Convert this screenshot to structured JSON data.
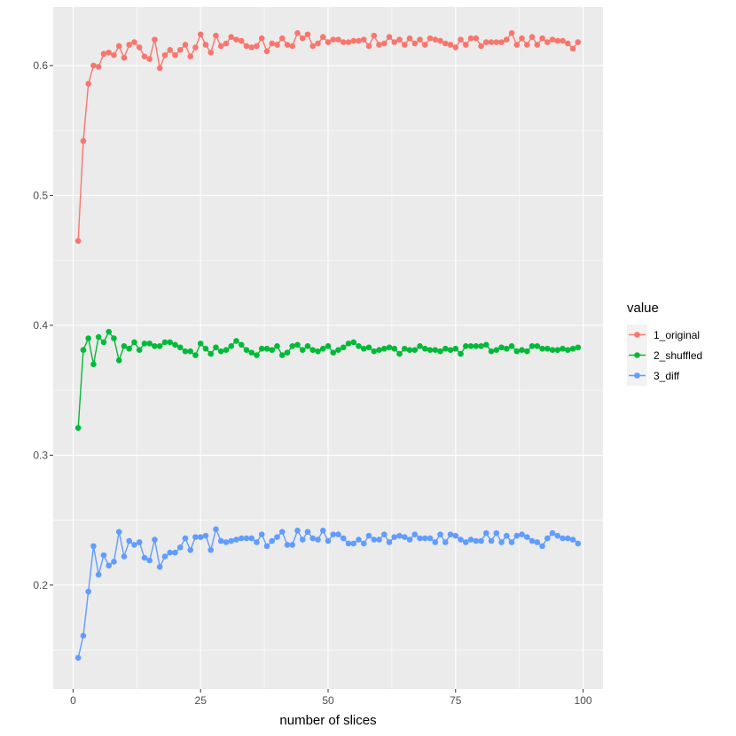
{
  "chart_data": {
    "type": "line",
    "title": "",
    "xlabel": "number of slices",
    "ylabel": "",
    "xlim": [
      -3.9,
      103.9
    ],
    "ylim": [
      0.12,
      0.645
    ],
    "x_ticks": [
      0,
      25,
      50,
      75,
      100
    ],
    "x_tick_labels": [
      "0",
      "25",
      "50",
      "75",
      "100"
    ],
    "y_ticks": [
      0.2,
      0.3,
      0.4,
      0.5,
      0.6
    ],
    "y_tick_labels": [
      "0.2",
      "0.3",
      "0.4",
      "0.5",
      "0.6"
    ],
    "grid": true,
    "panel_background": "#ebebeb",
    "grid_color": "#ffffff",
    "legend": {
      "title": "value",
      "position": "right"
    },
    "x": [
      1,
      2,
      3,
      4,
      5,
      6,
      7,
      8,
      9,
      10,
      11,
      12,
      13,
      14,
      15,
      16,
      17,
      18,
      19,
      20,
      21,
      22,
      23,
      24,
      25,
      26,
      27,
      28,
      29,
      30,
      31,
      32,
      33,
      34,
      35,
      36,
      37,
      38,
      39,
      40,
      41,
      42,
      43,
      44,
      45,
      46,
      47,
      48,
      49,
      50,
      51,
      52,
      53,
      54,
      55,
      56,
      57,
      58,
      59,
      60,
      61,
      62,
      63,
      64,
      65,
      66,
      67,
      68,
      69,
      70,
      71,
      72,
      73,
      74,
      75,
      76,
      77,
      78,
      79,
      80,
      81,
      82,
      83,
      84,
      85,
      86,
      87,
      88,
      89,
      90,
      91,
      92,
      93,
      94,
      95,
      96,
      97,
      98,
      99
    ],
    "series": [
      {
        "name": "1_original",
        "color": "#F8766D",
        "values": [
          0.465,
          0.542,
          0.586,
          0.6,
          0.599,
          0.609,
          0.61,
          0.608,
          0.615,
          0.606,
          0.616,
          0.618,
          0.614,
          0.607,
          0.605,
          0.62,
          0.598,
          0.608,
          0.612,
          0.608,
          0.612,
          0.616,
          0.607,
          0.614,
          0.624,
          0.616,
          0.61,
          0.623,
          0.615,
          0.617,
          0.622,
          0.62,
          0.619,
          0.615,
          0.614,
          0.615,
          0.621,
          0.611,
          0.617,
          0.616,
          0.621,
          0.616,
          0.615,
          0.625,
          0.621,
          0.624,
          0.615,
          0.617,
          0.622,
          0.618,
          0.62,
          0.62,
          0.618,
          0.618,
          0.619,
          0.619,
          0.62,
          0.615,
          0.623,
          0.616,
          0.617,
          0.622,
          0.618,
          0.62,
          0.616,
          0.621,
          0.617,
          0.62,
          0.616,
          0.621,
          0.62,
          0.619,
          0.617,
          0.616,
          0.614,
          0.62,
          0.616,
          0.621,
          0.621,
          0.615,
          0.618,
          0.618,
          0.618,
          0.618,
          0.62,
          0.625,
          0.616,
          0.621,
          0.616,
          0.622,
          0.616,
          0.621,
          0.618,
          0.62,
          0.619,
          0.619,
          0.617,
          0.613,
          0.618
        ],
        "_note": ""
      },
      {
        "name": "2_shuffled",
        "color": "#00BA38",
        "values": [
          0.321,
          0.381,
          0.39,
          0.37,
          0.391,
          0.387,
          0.395,
          0.39,
          0.373,
          0.384,
          0.382,
          0.387,
          0.381,
          0.386,
          0.386,
          0.384,
          0.384,
          0.387,
          0.387,
          0.385,
          0.383,
          0.38,
          0.38,
          0.377,
          0.386,
          0.382,
          0.378,
          0.383,
          0.38,
          0.381,
          0.384,
          0.388,
          0.385,
          0.381,
          0.379,
          0.377,
          0.382,
          0.382,
          0.381,
          0.384,
          0.377,
          0.379,
          0.384,
          0.385,
          0.381,
          0.384,
          0.381,
          0.38,
          0.382,
          0.384,
          0.379,
          0.381,
          0.383,
          0.386,
          0.387,
          0.384,
          0.382,
          0.383,
          0.38,
          0.381,
          0.382,
          0.383,
          0.382,
          0.378,
          0.382,
          0.381,
          0.381,
          0.384,
          0.382,
          0.381,
          0.381,
          0.38,
          0.382,
          0.381,
          0.382,
          0.378,
          0.384,
          0.384,
          0.384,
          0.384,
          0.385,
          0.38,
          0.381,
          0.383,
          0.382,
          0.384,
          0.38,
          0.381,
          0.38,
          0.384,
          0.384,
          0.382,
          0.382,
          0.381,
          0.381,
          0.382,
          0.381,
          0.382,
          0.383
        ]
      },
      {
        "name": "3_diff",
        "color": "#619CFF",
        "values": [
          0.144,
          0.161,
          0.195,
          0.23,
          0.208,
          0.223,
          0.215,
          0.218,
          0.241,
          0.222,
          0.234,
          0.231,
          0.233,
          0.221,
          0.219,
          0.235,
          0.214,
          0.222,
          0.225,
          0.225,
          0.229,
          0.236,
          0.227,
          0.237,
          0.237,
          0.238,
          0.227,
          0.243,
          0.234,
          0.233,
          0.234,
          0.235,
          0.236,
          0.236,
          0.236,
          0.233,
          0.239,
          0.23,
          0.234,
          0.237,
          0.241,
          0.231,
          0.231,
          0.242,
          0.235,
          0.241,
          0.236,
          0.235,
          0.242,
          0.234,
          0.239,
          0.239,
          0.236,
          0.232,
          0.232,
          0.235,
          0.232,
          0.238,
          0.235,
          0.235,
          0.239,
          0.233,
          0.237,
          0.238,
          0.237,
          0.235,
          0.239,
          0.236,
          0.236,
          0.236,
          0.233,
          0.239,
          0.233,
          0.239,
          0.238,
          0.235,
          0.233,
          0.235,
          0.234,
          0.234,
          0.24,
          0.234,
          0.24,
          0.233,
          0.238,
          0.233,
          0.238,
          0.239,
          0.237,
          0.234,
          0.233,
          0.23,
          0.236,
          0.24,
          0.238,
          0.236,
          0.236,
          0.235,
          0.232
        ]
      }
    ]
  }
}
